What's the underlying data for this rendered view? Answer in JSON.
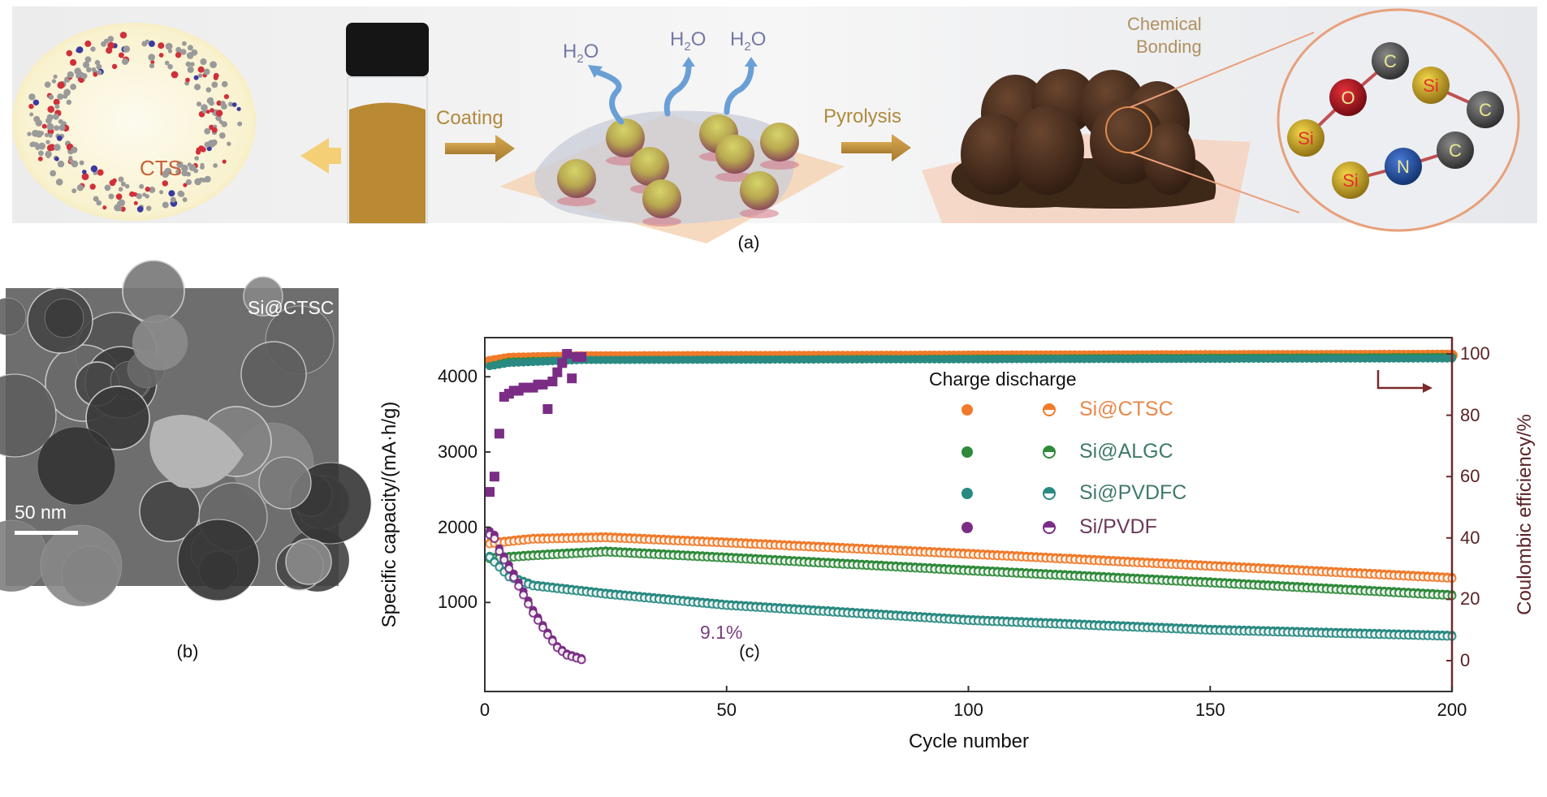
{
  "schematic": {
    "cts_label": "CTS",
    "coating_label": "Coating",
    "h2o_labels": [
      "H",
      "2",
      "O"
    ],
    "pyrolysis_label": "Pyrolysis",
    "chemical_bonding_label": [
      "Chemical",
      "Bonding"
    ],
    "atoms": [
      "Si",
      "O",
      "C",
      "Si",
      "C",
      "Si",
      "N",
      "C"
    ],
    "colors": {
      "text_gold": "#b0893c",
      "h2o": "#7479a6",
      "cts": "#c9603a",
      "liquid": "#b98a33",
      "circle": "#e8a07a"
    }
  },
  "panel_labels": {
    "a": "(a)",
    "b": "(b)",
    "c": "(c)"
  },
  "tem": {
    "sample_label": "Si@CTSC",
    "scale_bar": "50 nm"
  },
  "chart_data": {
    "type": "scatter",
    "xlabel": "Cycle number",
    "ylabel_left": "Specific capacity/(mA·h/g)",
    "ylabel_right": "Coulombic efficiency/%",
    "xlim": [
      0,
      200
    ],
    "ylim_left": [
      0,
      4500
    ],
    "ylim_right": [
      0,
      100
    ],
    "xticks": [
      0,
      50,
      100,
      150,
      200
    ],
    "yticks_left": [
      1000,
      2000,
      3000,
      4000
    ],
    "yticks_right": [
      0,
      20,
      40,
      60,
      80,
      100
    ],
    "grid": false,
    "legend_title": "Charge discharge",
    "legend_placement": "top-right",
    "annotation": "9.1%",
    "series": [
      {
        "name": "Si@CTSC",
        "color": "#f07a2a",
        "discharge": [
          [
            1,
            1800
          ],
          [
            10,
            1860
          ],
          [
            25,
            1880
          ],
          [
            50,
            1810
          ],
          [
            100,
            1660
          ],
          [
            150,
            1500
          ],
          [
            200,
            1340
          ]
        ],
        "charge": [
          [
            1,
            1780
          ],
          [
            10,
            1840
          ],
          [
            25,
            1860
          ],
          [
            50,
            1790
          ],
          [
            100,
            1640
          ],
          [
            150,
            1480
          ],
          [
            200,
            1320
          ]
        ],
        "ce": [
          [
            1,
            97
          ],
          [
            5,
            98
          ],
          [
            20,
            98.5
          ],
          [
            200,
            99
          ]
        ]
      },
      {
        "name": "Si@ALGC",
        "color": "#2f8a3a",
        "discharge": [
          [
            1,
            1600
          ],
          [
            10,
            1640
          ],
          [
            25,
            1690
          ],
          [
            50,
            1610
          ],
          [
            100,
            1440
          ],
          [
            150,
            1280
          ],
          [
            200,
            1110
          ]
        ],
        "charge": [
          [
            1,
            1580
          ],
          [
            10,
            1620
          ],
          [
            25,
            1670
          ],
          [
            50,
            1590
          ],
          [
            100,
            1420
          ],
          [
            150,
            1260
          ],
          [
            200,
            1090
          ]
        ],
        "ce": [
          [
            1,
            96
          ],
          [
            5,
            97.5
          ],
          [
            20,
            98
          ],
          [
            200,
            99
          ]
        ]
      },
      {
        "name": "Si@PVDFC",
        "color": "#2a8a82",
        "discharge": [
          [
            1,
            1620
          ],
          [
            5,
            1360
          ],
          [
            10,
            1240
          ],
          [
            25,
            1130
          ],
          [
            50,
            980
          ],
          [
            100,
            780
          ],
          [
            150,
            650
          ],
          [
            200,
            570
          ]
        ],
        "charge": [
          [
            1,
            1600
          ],
          [
            5,
            1340
          ],
          [
            10,
            1220
          ],
          [
            25,
            1110
          ],
          [
            50,
            960
          ],
          [
            100,
            760
          ],
          [
            150,
            630
          ],
          [
            200,
            550
          ]
        ],
        "ce": [
          [
            1,
            96
          ],
          [
            5,
            97
          ],
          [
            20,
            98
          ],
          [
            200,
            98.5
          ]
        ]
      },
      {
        "name": "Si/PVDF",
        "color": "#7b2d86",
        "discharge": [
          [
            1,
            1950
          ],
          [
            2,
            1900
          ],
          [
            3,
            1720
          ],
          [
            5,
            1500
          ],
          [
            8,
            1150
          ],
          [
            10,
            900
          ],
          [
            13,
            600
          ],
          [
            15,
            420
          ],
          [
            17,
            320
          ],
          [
            20,
            260
          ]
        ],
        "charge": [
          [
            1,
            1900
          ],
          [
            2,
            1850
          ],
          [
            3,
            1680
          ],
          [
            5,
            1450
          ],
          [
            8,
            1100
          ],
          [
            10,
            860
          ],
          [
            13,
            570
          ],
          [
            15,
            400
          ],
          [
            17,
            300
          ],
          [
            20,
            240
          ]
        ],
        "ce": [
          [
            1,
            55
          ],
          [
            2,
            60
          ],
          [
            3,
            74
          ],
          [
            4,
            86
          ],
          [
            5,
            87
          ],
          [
            6,
            88
          ],
          [
            7,
            88
          ],
          [
            8,
            89
          ],
          [
            9,
            89
          ],
          [
            10,
            89
          ],
          [
            11,
            90
          ],
          [
            12,
            90
          ],
          [
            13,
            82
          ],
          [
            14,
            91
          ],
          [
            15,
            94
          ],
          [
            16,
            97
          ],
          [
            17,
            100
          ],
          [
            18,
            92
          ],
          [
            19,
            99
          ],
          [
            20,
            99
          ]
        ]
      }
    ]
  }
}
